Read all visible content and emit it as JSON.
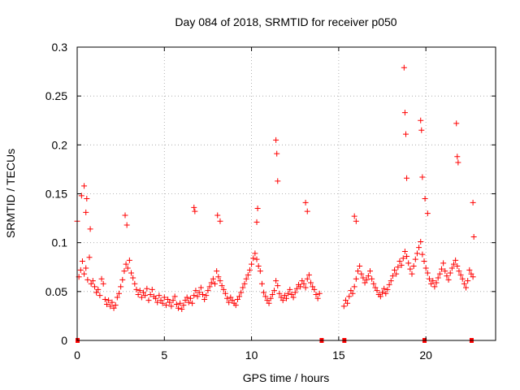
{
  "chart_data": {
    "type": "scatter",
    "title": "Day 084 of 2018, SRMTID for receiver p050",
    "xlabel": "GPS time / hours",
    "ylabel": "SRMTID / TECUs",
    "xlim": [
      0,
      24
    ],
    "ylim": [
      0,
      0.3
    ],
    "xticks": [
      0,
      5,
      10,
      15,
      20
    ],
    "xtick_labels": [
      "0",
      "5",
      "10",
      "15",
      "20"
    ],
    "yticks": [
      0,
      0.05,
      0.1,
      0.15,
      0.2,
      0.25,
      0.3
    ],
    "ytick_labels": [
      "0",
      "0.05",
      "0.1",
      "0.15",
      "0.2",
      "0.25",
      "0.3"
    ],
    "grid": true,
    "marker": "+",
    "color": "#ff0000",
    "series": [
      {
        "name": "SRMTID",
        "x": [
          0.0,
          0.1,
          0.2,
          0.3,
          0.4,
          0.5,
          0.6,
          0.7,
          0.8,
          0.9,
          1.0,
          1.1,
          1.2,
          1.3,
          1.4,
          1.5,
          1.6,
          1.7,
          1.8,
          1.9,
          2.0,
          2.1,
          2.2,
          2.3,
          2.4,
          2.5,
          2.6,
          2.7,
          2.8,
          2.9,
          3.0,
          3.1,
          3.2,
          3.3,
          3.4,
          3.5,
          3.6,
          3.7,
          3.8,
          3.9,
          4.0,
          4.1,
          4.2,
          4.3,
          4.4,
          4.5,
          4.6,
          4.7,
          4.8,
          4.9,
          5.0,
          5.1,
          5.2,
          5.3,
          5.4,
          5.5,
          5.6,
          5.7,
          5.8,
          5.9,
          6.0,
          6.1,
          6.2,
          6.3,
          6.4,
          6.5,
          6.6,
          6.7,
          6.8,
          6.9,
          7.0,
          7.1,
          7.2,
          7.3,
          7.4,
          7.5,
          7.6,
          7.7,
          7.8,
          7.9,
          8.0,
          8.1,
          8.2,
          8.3,
          8.4,
          8.5,
          8.6,
          8.7,
          8.8,
          8.9,
          9.0,
          9.1,
          9.2,
          9.3,
          9.4,
          9.5,
          9.6,
          9.7,
          9.8,
          9.9,
          10.0,
          10.1,
          10.2,
          10.3,
          10.4,
          10.5,
          10.6,
          10.7,
          10.8,
          10.9,
          11.0,
          11.1,
          11.2,
          11.3,
          11.4,
          11.5,
          11.6,
          11.7,
          11.8,
          11.9,
          12.0,
          12.1,
          12.2,
          12.3,
          12.4,
          12.5,
          12.6,
          12.7,
          12.8,
          12.9,
          13.0,
          13.1,
          13.2,
          13.3,
          13.4,
          13.5,
          13.6,
          13.7,
          13.8,
          13.9,
          15.3,
          15.4,
          15.5,
          15.6,
          15.7,
          15.8,
          15.9,
          16.0,
          16.1,
          16.2,
          16.3,
          16.4,
          16.5,
          16.6,
          16.7,
          16.8,
          16.9,
          17.0,
          17.1,
          17.2,
          17.3,
          17.4,
          17.5,
          17.6,
          17.7,
          17.8,
          17.9,
          18.0,
          18.1,
          18.2,
          18.3,
          18.4,
          18.5,
          18.6,
          18.7,
          18.8,
          18.9,
          19.0,
          19.1,
          19.2,
          19.3,
          19.4,
          19.5,
          19.6,
          19.7,
          19.8,
          19.9,
          20.0,
          20.1,
          20.2,
          20.3,
          20.4,
          20.5,
          20.6,
          20.7,
          20.8,
          20.9,
          21.0,
          21.1,
          21.2,
          21.3,
          21.4,
          21.5,
          21.6,
          21.7,
          21.8,
          21.9,
          22.0,
          22.1,
          22.2,
          22.3,
          22.4,
          22.5,
          22.6,
          22.7,
          0.25,
          0.4,
          0.5,
          0.55,
          0.75,
          2.75,
          2.85,
          6.7,
          6.75,
          8.05,
          8.2,
          10.3,
          10.35,
          11.4,
          11.45,
          11.5,
          13.1,
          13.2,
          15.9,
          16.0,
          18.75,
          18.8,
          18.85,
          18.9,
          19.7,
          19.75,
          19.8,
          19.95,
          20.1,
          21.75,
          21.8,
          21.85,
          22.7,
          22.75
        ],
        "y": [
          0.122,
          0.065,
          0.072,
          0.081,
          0.068,
          0.074,
          0.062,
          0.085,
          0.058,
          0.061,
          0.055,
          0.049,
          0.052,
          0.046,
          0.063,
          0.058,
          0.042,
          0.037,
          0.041,
          0.035,
          0.039,
          0.033,
          0.036,
          0.044,
          0.048,
          0.055,
          0.062,
          0.071,
          0.078,
          0.074,
          0.082,
          0.069,
          0.064,
          0.058,
          0.052,
          0.047,
          0.051,
          0.044,
          0.049,
          0.046,
          0.053,
          0.041,
          0.047,
          0.052,
          0.045,
          0.043,
          0.039,
          0.046,
          0.041,
          0.038,
          0.044,
          0.036,
          0.042,
          0.039,
          0.035,
          0.041,
          0.045,
          0.037,
          0.033,
          0.038,
          0.032,
          0.036,
          0.041,
          0.044,
          0.039,
          0.043,
          0.038,
          0.046,
          0.051,
          0.045,
          0.049,
          0.054,
          0.047,
          0.042,
          0.046,
          0.051,
          0.055,
          0.059,
          0.063,
          0.058,
          0.071,
          0.065,
          0.061,
          0.056,
          0.052,
          0.048,
          0.043,
          0.039,
          0.044,
          0.041,
          0.038,
          0.036,
          0.042,
          0.045,
          0.049,
          0.054,
          0.058,
          0.063,
          0.067,
          0.072,
          0.078,
          0.084,
          0.089,
          0.083,
          0.076,
          0.071,
          0.058,
          0.049,
          0.045,
          0.041,
          0.038,
          0.043,
          0.047,
          0.051,
          0.061,
          0.056,
          0.048,
          0.044,
          0.041,
          0.046,
          0.043,
          0.048,
          0.052,
          0.047,
          0.044,
          0.049,
          0.053,
          0.057,
          0.055,
          0.061,
          0.058,
          0.054,
          0.063,
          0.067,
          0.059,
          0.055,
          0.052,
          0.047,
          0.043,
          0.048,
          0.035,
          0.041,
          0.038,
          0.045,
          0.051,
          0.048,
          0.055,
          0.063,
          0.071,
          0.076,
          0.068,
          0.064,
          0.059,
          0.062,
          0.066,
          0.071,
          0.063,
          0.058,
          0.054,
          0.051,
          0.047,
          0.045,
          0.049,
          0.053,
          0.048,
          0.052,
          0.057,
          0.061,
          0.066,
          0.072,
          0.068,
          0.075,
          0.081,
          0.077,
          0.084,
          0.091,
          0.086,
          0.079,
          0.073,
          0.068,
          0.076,
          0.083,
          0.089,
          0.095,
          0.101,
          0.088,
          0.081,
          0.074,
          0.069,
          0.063,
          0.058,
          0.061,
          0.055,
          0.059,
          0.064,
          0.068,
          0.073,
          0.079,
          0.071,
          0.066,
          0.062,
          0.069,
          0.074,
          0.078,
          0.082,
          0.076,
          0.071,
          0.067,
          0.063,
          0.058,
          0.054,
          0.061,
          0.072,
          0.068,
          0.065,
          0.148,
          0.158,
          0.131,
          0.145,
          0.114,
          0.128,
          0.118,
          0.136,
          0.132,
          0.128,
          0.122,
          0.121,
          0.135,
          0.205,
          0.191,
          0.163,
          0.141,
          0.132,
          0.127,
          0.122,
          0.279,
          0.233,
          0.211,
          0.166,
          0.225,
          0.215,
          0.167,
          0.145,
          0.13,
          0.222,
          0.188,
          0.182,
          0.141,
          0.106
        ]
      }
    ],
    "data_gaps_marked_at_y0": [
      0,
      14,
      15.3,
      19.9,
      22.6
    ]
  }
}
